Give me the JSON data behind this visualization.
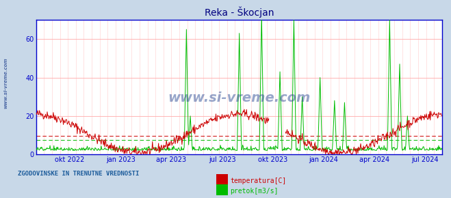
{
  "title": "Reka - Škocjan",
  "title_color": "#000080",
  "bg_color": "#c8d8e8",
  "plot_bg_color": "#ffffff",
  "grid_color_h": "#ffaaaa",
  "grid_color_v": "#ffcccc",
  "temp_color": "#cc0000",
  "flow_color": "#00bb00",
  "temp_avg_line": 9.5,
  "flow_avg_line": 7.5,
  "ylim": [
    0,
    70
  ],
  "yticks": [
    0,
    20,
    40,
    60
  ],
  "xtick_labels": [
    "okt 2022",
    "jan 2023",
    "apr 2023",
    "jul 2023",
    "okt 2023",
    "jan 2024",
    "apr 2024",
    "jul 2024"
  ],
  "watermark": "www.si-vreme.com",
  "watermark_color": "#1a3a8a",
  "footer_text": "ZGODOVINSKE IN TRENUTNE VREDNOSTI",
  "footer_color": "#1a5a9a",
  "legend_temp_label": "temperatura[C]",
  "legend_flow_label": "pretok[m3/s]",
  "axis_border_color": "#0000cc",
  "left_label": "www.si-vreme.com",
  "n_points": 730
}
